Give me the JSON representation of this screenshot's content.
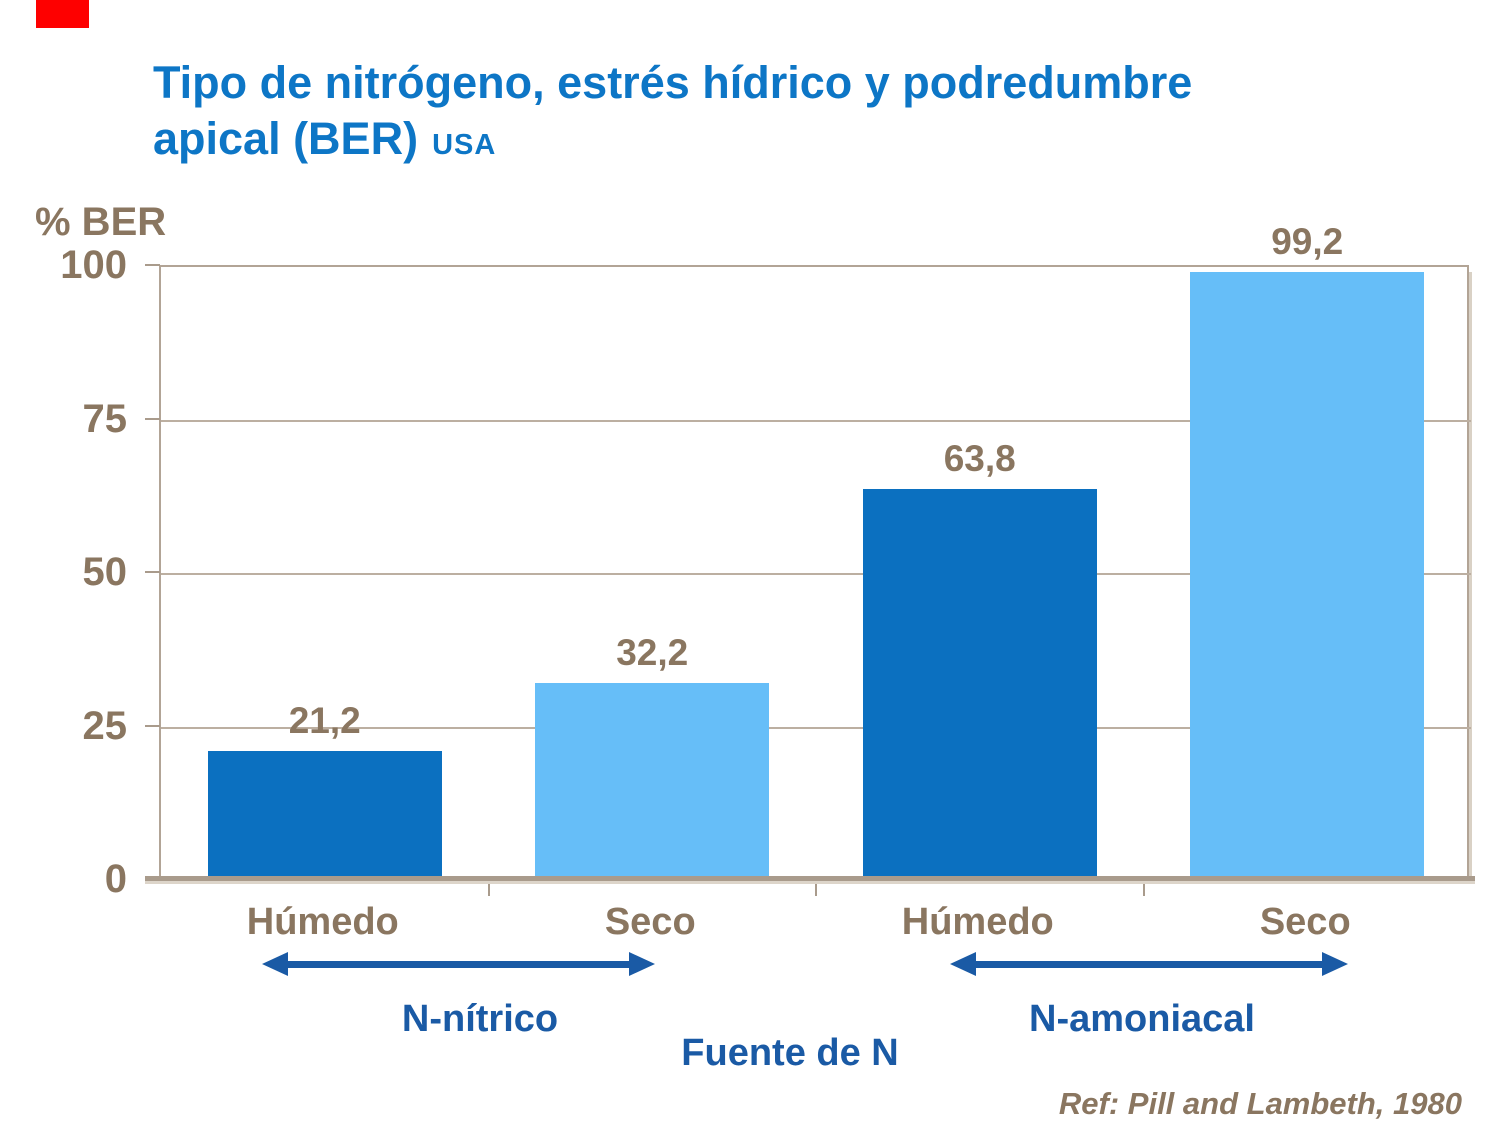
{
  "slide": {
    "title_line1": "Tipo de nitrógeno, estrés hídrico y podredumbre",
    "title_line2": "apical (BER)",
    "title_suffix": "USA",
    "reference": "Ref: Pill and Lambeth, 1980"
  },
  "colors": {
    "accent_red": "#fe0000",
    "title_blue": "#0d76c6",
    "deep_blue": "#1a5aa5",
    "dark_bar": "#0b70c0",
    "light_bar": "#66bef8",
    "text_brown": "#8a7660",
    "axis_tan": "#b2a496"
  },
  "chart_data": {
    "type": "bar",
    "title": "Tipo de nitrógeno, estrés hídrico y podredumbre apical (BER) USA",
    "ylabel": "% BER",
    "xlabel": "Fuente de N",
    "ylim": [
      0,
      100
    ],
    "yticks": [
      0,
      25,
      50,
      75,
      100
    ],
    "grid": true,
    "legend": false,
    "categories": [
      "Húmedo",
      "Seco",
      "Húmedo",
      "Seco"
    ],
    "values": [
      21.2,
      32.2,
      63.8,
      99.2
    ],
    "value_labels": [
      "21,2",
      "32,2",
      "63,8",
      "99,2"
    ],
    "bar_colors": [
      "#0b70c0",
      "#66bef8",
      "#0b70c0",
      "#66bef8"
    ],
    "groups": [
      {
        "label": "N-nítrico",
        "category_indexes": [
          0,
          1
        ]
      },
      {
        "label": "N-amoniacal",
        "category_indexes": [
          2,
          3
        ]
      }
    ]
  }
}
